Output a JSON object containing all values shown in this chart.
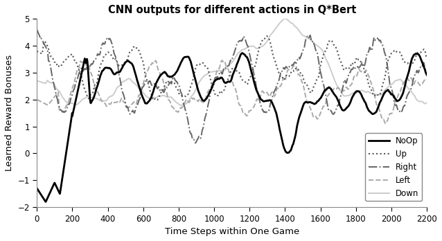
{
  "title": "CNN outputs for different actions in Q*Bert",
  "xlabel": "Time Steps within One Game",
  "ylabel": "Learned Reward Bonuses",
  "xlim": [
    0,
    2200
  ],
  "ylim": [
    -2,
    5
  ],
  "xticks": [
    0,
    200,
    400,
    600,
    800,
    1000,
    1200,
    1400,
    1600,
    1800,
    2000,
    2200
  ],
  "yticks": [
    -2,
    -1,
    0,
    1,
    2,
    3,
    4,
    5
  ],
  "legend_labels": [
    "NoOp",
    "Up",
    "Right",
    "Left",
    "Down"
  ],
  "noOp_color": "#000000",
  "up_color": "#555555",
  "right_color": "#666666",
  "left_color": "#aaaaaa",
  "down_color": "#cccccc",
  "figsize": [
    6.38,
    3.48
  ],
  "dpi": 100
}
